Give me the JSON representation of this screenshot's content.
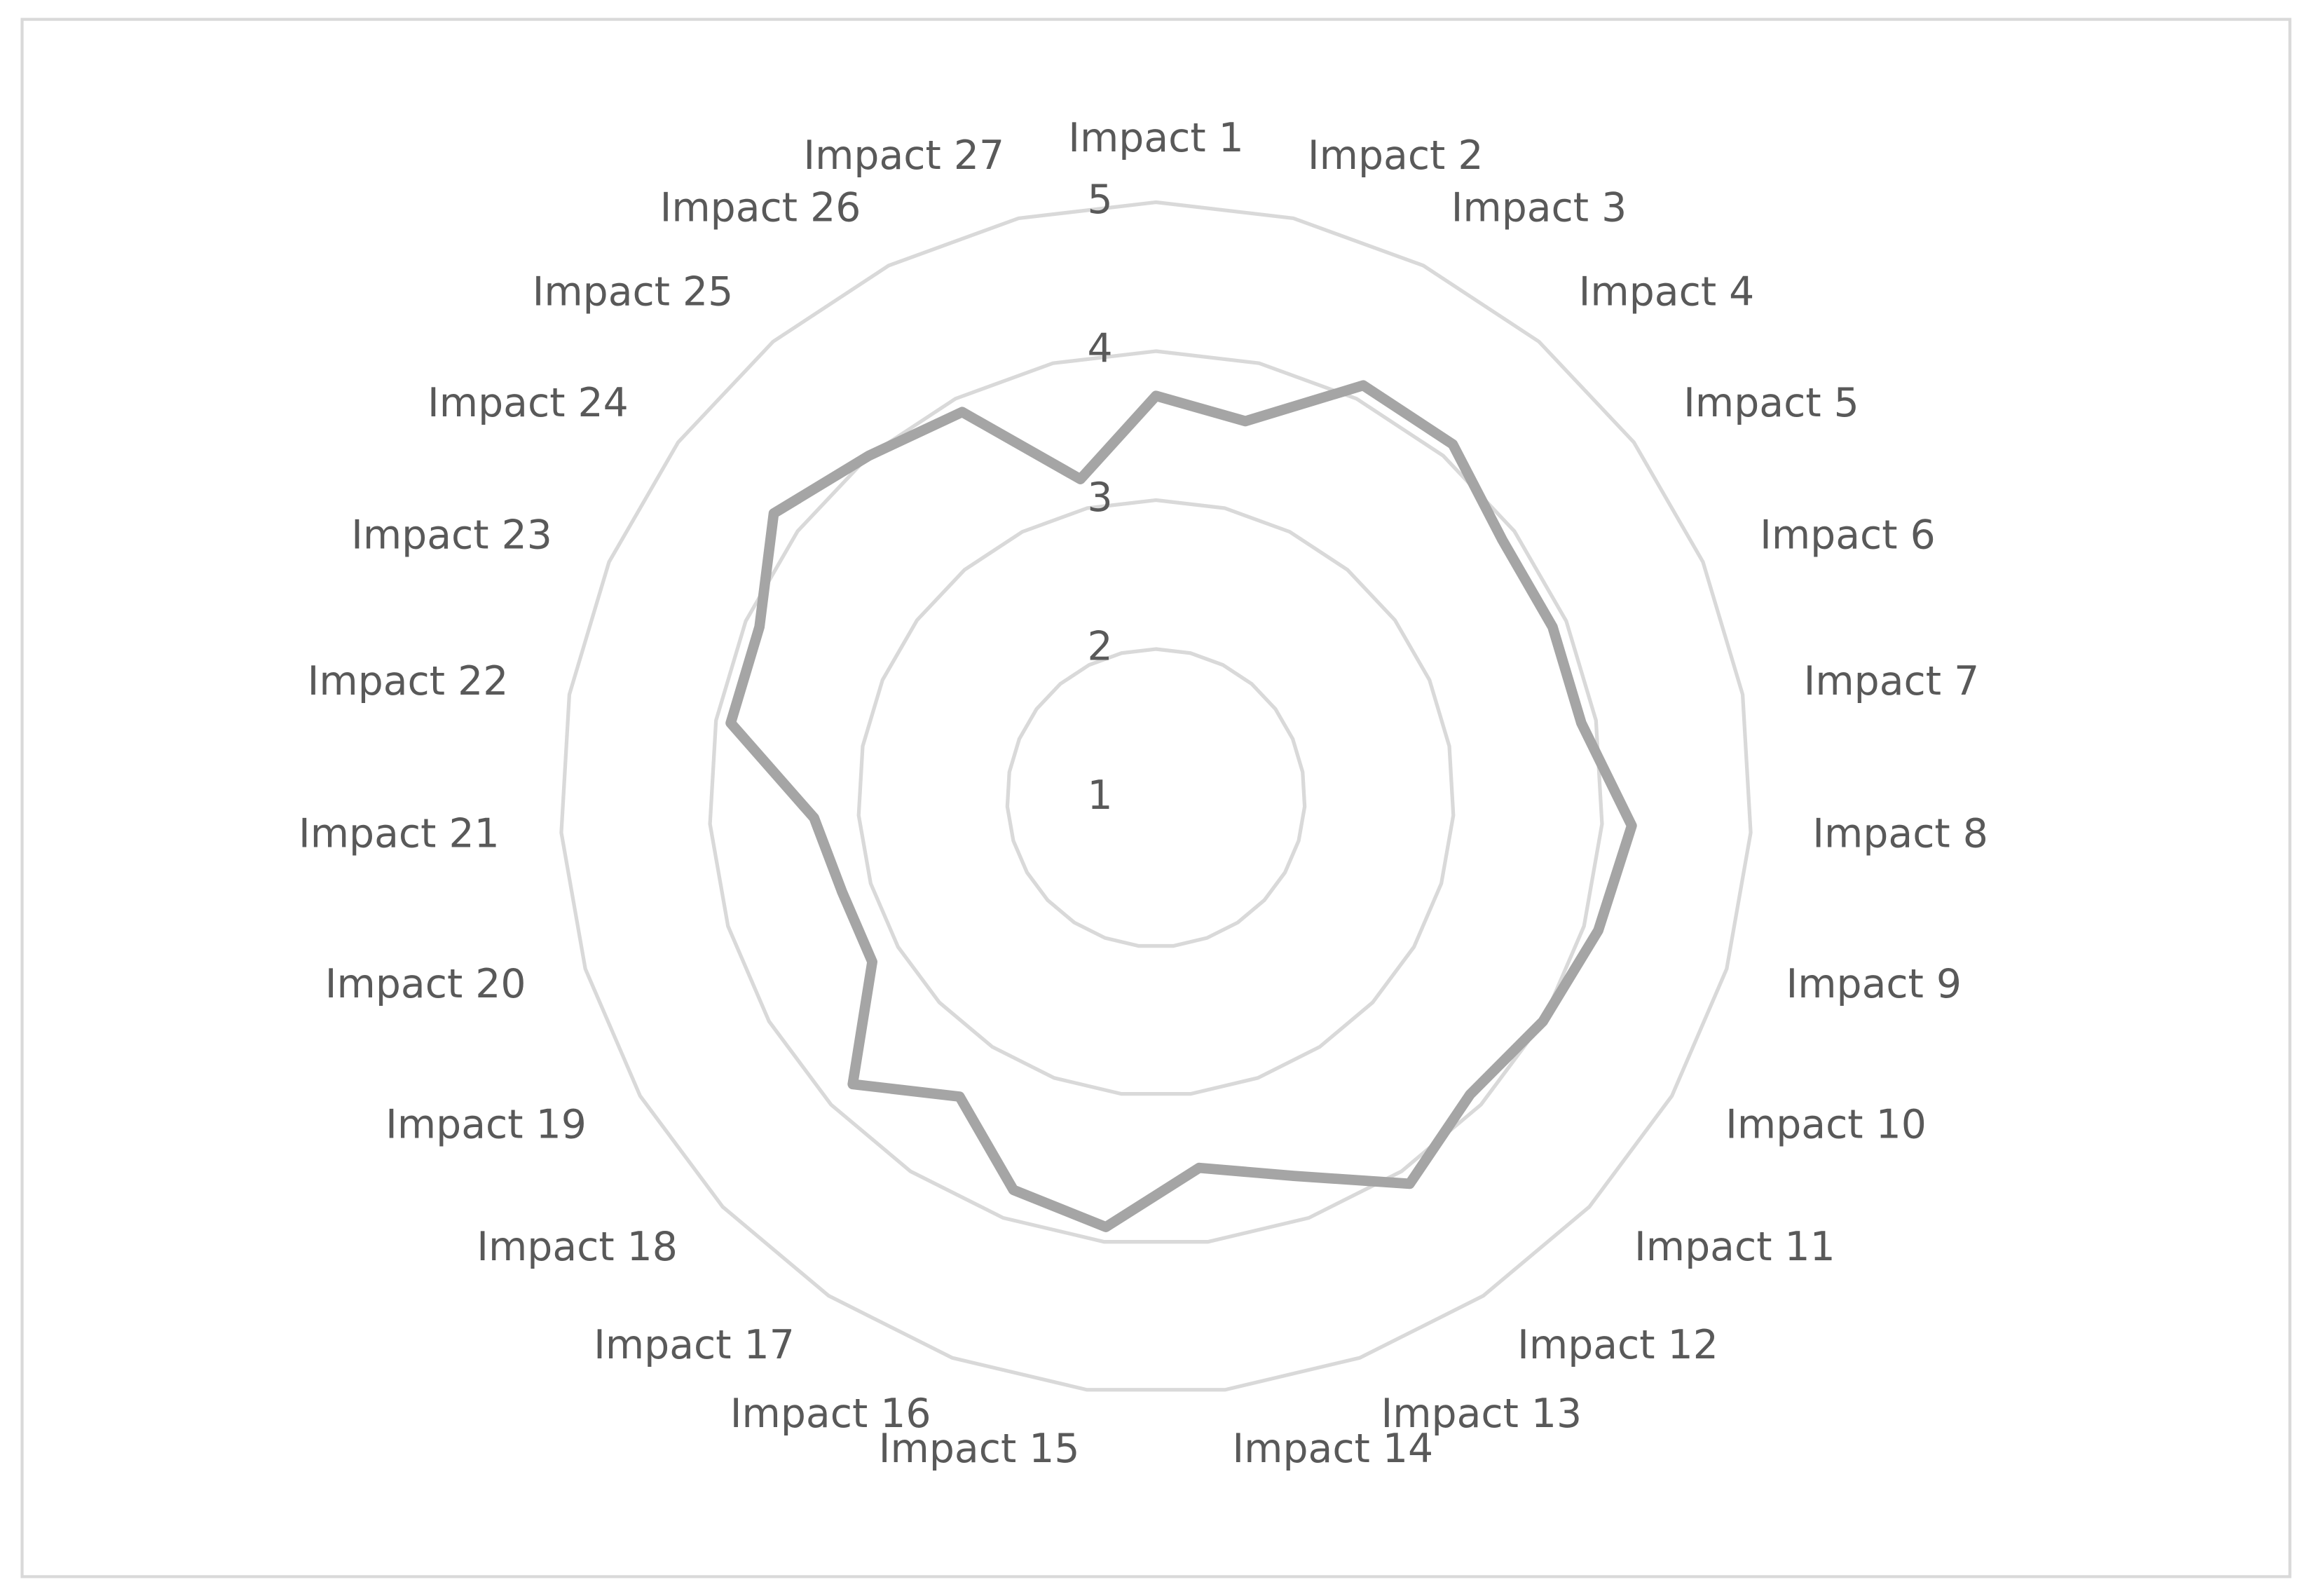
{
  "chart_data": {
    "type": "radar",
    "categories": [
      "Impact 1",
      "Impact 2",
      "Impact 3",
      "Impact 4",
      "Impact 5",
      "Impact 6",
      "Impact 7",
      "Impact 8",
      "Impact 9",
      "Impact 10",
      "Impact 11",
      "Impact 12",
      "Impact 13",
      "Impact 14",
      "Impact 15",
      "Impact 16",
      "Impact 17",
      "Impact 18",
      "Impact 19",
      "Impact 20",
      "Impact 21",
      "Impact 22",
      "Impact 23",
      "Impact 24",
      "Impact 25",
      "Impact 26",
      "Impact 27"
    ],
    "values": [
      3.7,
      3.6,
      4.1,
      4.1,
      3.9,
      3.9,
      3.9,
      4.2,
      4.1,
      4.0,
      3.9,
      4.1,
      3.7,
      3.5,
      3.9,
      3.8,
      3.4,
      3.8,
      3.2,
      3.2,
      3.3,
      3.9,
      3.9,
      4.2,
      4.0,
      3.9,
      3.2
    ],
    "color": "#a5a5a5",
    "ylim": [
      1,
      5
    ],
    "yticks": [
      1,
      2,
      3,
      4,
      5
    ],
    "grid": true
  }
}
